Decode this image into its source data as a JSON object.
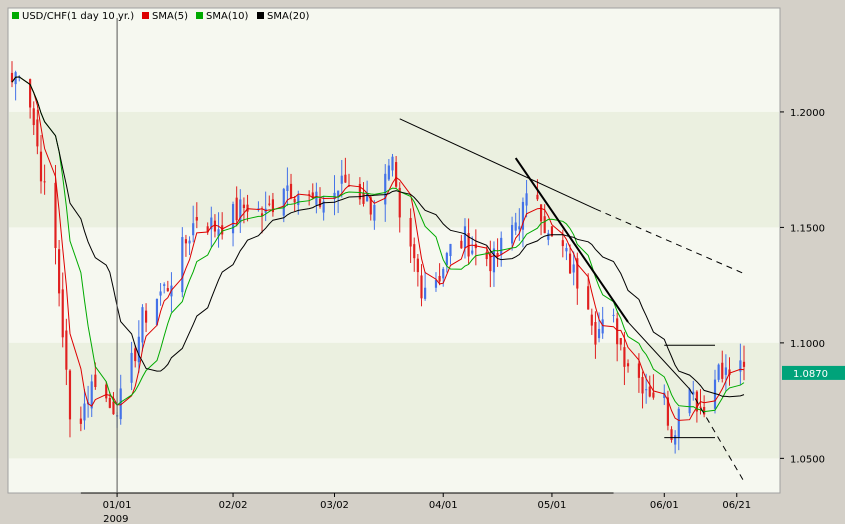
{
  "legend": [
    {
      "label": "USD/CHF(1 day  10 yr.)",
      "color": "#00aa00"
    },
    {
      "label": "SMA(5)",
      "color": "#dd0000"
    },
    {
      "label": "SMA(10)",
      "color": "#00aa00"
    },
    {
      "label": "SMA(20)",
      "color": "#000000"
    }
  ],
  "colors": {
    "up": "#4472e8",
    "down": "#e02020",
    "sma5": "#dd0000",
    "sma10": "#00aa00",
    "sma20": "#000000",
    "price_badge": "#00a37a",
    "band_light": "#f6f8f0",
    "band_dark": "#ebf0e0"
  },
  "chart_data": {
    "type": "candlestick",
    "title": "USD/CHF(1 day  10 yr.)",
    "ylim": [
      1.035,
      1.245
    ],
    "y_ticks": [
      "1.0500",
      "1.1000",
      "1.1500",
      "1.2000"
    ],
    "y_tick_values": [
      1.05,
      1.1,
      1.15,
      1.2
    ],
    "x_tick_labels": [
      "01/01",
      "02/02",
      "03/02",
      "04/01",
      "05/01",
      "06/01",
      "06/21"
    ],
    "x_tick_dates": [
      "2009-01-01",
      "2009-02-02",
      "2009-03-02",
      "2009-04-01",
      "2009-05-01",
      "2009-06-01",
      "2009-06-21"
    ],
    "year_label": "2009",
    "last_price": "1.0870",
    "date_range": [
      "2008-12-03",
      "2009-06-23"
    ],
    "grid": false,
    "legend_position": "top-left",
    "close_anchors": [
      [
        "2008-12-03",
        1.213
      ],
      [
        "2008-12-05",
        1.22
      ],
      [
        "2008-12-08",
        1.205
      ],
      [
        "2008-12-10",
        1.185
      ],
      [
        "2008-12-12",
        1.165
      ],
      [
        "2008-12-15",
        1.14
      ],
      [
        "2008-12-17",
        1.105
      ],
      [
        "2008-12-19",
        1.065
      ],
      [
        "2008-12-22",
        1.07
      ],
      [
        "2008-12-26",
        1.085
      ],
      [
        "2008-12-30",
        1.072
      ],
      [
        "2009-01-02",
        1.075
      ],
      [
        "2009-01-05",
        1.09
      ],
      [
        "2009-01-08",
        1.11
      ],
      [
        "2009-01-12",
        1.12
      ],
      [
        "2009-01-15",
        1.125
      ],
      [
        "2009-01-19",
        1.14
      ],
      [
        "2009-01-23",
        1.155
      ],
      [
        "2009-01-28",
        1.15
      ],
      [
        "2009-02-02",
        1.155
      ],
      [
        "2009-02-06",
        1.16
      ],
      [
        "2009-02-11",
        1.155
      ],
      [
        "2009-02-16",
        1.17
      ],
      [
        "2009-02-20",
        1.165
      ],
      [
        "2009-02-25",
        1.16
      ],
      [
        "2009-03-02",
        1.165
      ],
      [
        "2009-03-05",
        1.17
      ],
      [
        "2009-03-09",
        1.165
      ],
      [
        "2009-03-12",
        1.16
      ],
      [
        "2009-03-16",
        1.17
      ],
      [
        "2009-03-18",
        1.175
      ],
      [
        "2009-03-20",
        1.15
      ],
      [
        "2009-03-24",
        1.135
      ],
      [
        "2009-03-26",
        1.125
      ],
      [
        "2009-03-31",
        1.13
      ],
      [
        "2009-04-03",
        1.14
      ],
      [
        "2009-04-07",
        1.145
      ],
      [
        "2009-04-10",
        1.14
      ],
      [
        "2009-04-15",
        1.135
      ],
      [
        "2009-04-20",
        1.15
      ],
      [
        "2009-04-24",
        1.16
      ],
      [
        "2009-04-27",
        1.165
      ],
      [
        "2009-04-30",
        1.145
      ],
      [
        "2009-05-04",
        1.14
      ],
      [
        "2009-05-07",
        1.13
      ],
      [
        "2009-05-11",
        1.12
      ],
      [
        "2009-05-13",
        1.105
      ],
      [
        "2009-05-18",
        1.108
      ],
      [
        "2009-05-21",
        1.095
      ],
      [
        "2009-05-25",
        1.085
      ],
      [
        "2009-05-28",
        1.08
      ],
      [
        "2009-06-01",
        1.075
      ],
      [
        "2009-06-03",
        1.062
      ],
      [
        "2009-06-05",
        1.07
      ],
      [
        "2009-06-08",
        1.085
      ],
      [
        "2009-06-10",
        1.075
      ],
      [
        "2009-06-12",
        1.07
      ],
      [
        "2009-06-15",
        1.09
      ],
      [
        "2009-06-17",
        1.085
      ],
      [
        "2009-06-19",
        1.088
      ],
      [
        "2009-06-23",
        1.087
      ]
    ],
    "trendlines": [
      {
        "style": "solid",
        "from": [
          "2009-03-20",
          1.197
        ],
        "to": [
          "2009-05-13",
          1.158
        ],
        "width": 1
      },
      {
        "style": "dashed",
        "from": [
          "2009-05-13",
          1.158
        ],
        "to": [
          "2009-06-23",
          1.13
        ],
        "width": 1
      },
      {
        "style": "solid",
        "from": [
          "2009-04-21",
          1.18
        ],
        "to": [
          "2009-05-22",
          1.109
        ],
        "width": 2
      },
      {
        "style": "solid",
        "from": [
          "2009-05-22",
          1.109
        ],
        "to": [
          "2009-06-08",
          1.08
        ],
        "width": 1
      },
      {
        "style": "dashed",
        "from": [
          "2009-06-08",
          1.08
        ],
        "to": [
          "2009-06-23",
          1.04
        ],
        "width": 1
      },
      {
        "style": "solid",
        "from": [
          "2008-12-22",
          1.035
        ],
        "to": [
          "2009-05-18",
          1.035
        ],
        "width": 1
      }
    ],
    "range_box": {
      "from": "2009-06-01",
      "to": "2009-06-15",
      "high": 1.099,
      "low": 1.059,
      "mid_low": 1.064
    }
  }
}
